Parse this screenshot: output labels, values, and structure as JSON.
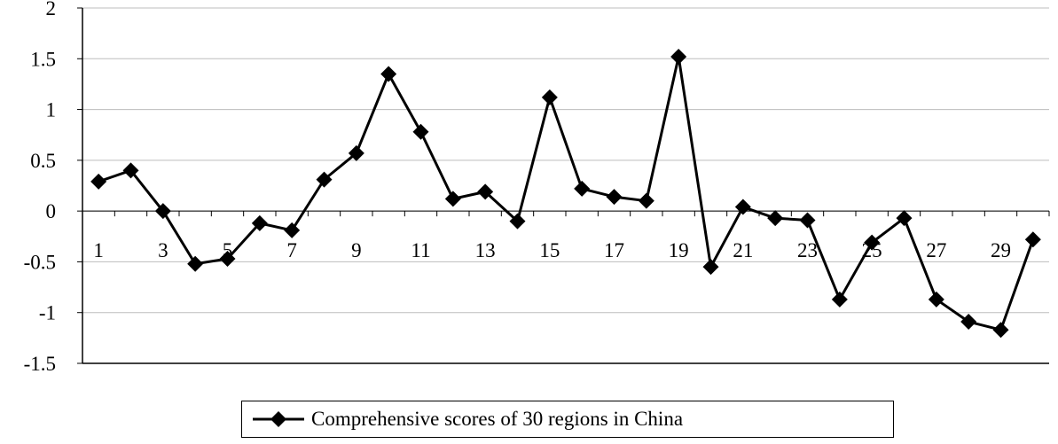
{
  "chart_data": {
    "type": "line",
    "x": [
      1,
      2,
      3,
      4,
      5,
      6,
      7,
      8,
      9,
      10,
      11,
      12,
      13,
      14,
      15,
      16,
      17,
      18,
      19,
      20,
      21,
      22,
      23,
      24,
      25,
      26,
      27,
      28,
      29,
      30
    ],
    "xtick_labels": [
      "1",
      "3",
      "5",
      "7",
      "9",
      "11",
      "13",
      "15",
      "17",
      "19",
      "21",
      "23",
      "25",
      "27",
      "29"
    ],
    "ytick_labels": [
      "2",
      "1.5",
      "1",
      "0.5",
      "0",
      "-0.5",
      "-1",
      "-1.5"
    ],
    "ylim": [
      -1.5,
      2
    ],
    "grid": true,
    "legend_position": "bottom",
    "series": [
      {
        "name": "Comprehensive scores of 30 regions in China",
        "color": "#000000",
        "marker": "diamond",
        "values": [
          0.29,
          0.4,
          0.0,
          -0.52,
          -0.47,
          -0.12,
          -0.19,
          0.31,
          0.57,
          1.35,
          0.78,
          0.12,
          0.19,
          -0.1,
          1.12,
          0.22,
          0.14,
          0.1,
          1.52,
          -0.55,
          0.04,
          -0.07,
          -0.09,
          -0.87,
          -0.31,
          -0.07,
          -0.87,
          -1.09,
          -1.17,
          -0.28
        ]
      }
    ]
  }
}
